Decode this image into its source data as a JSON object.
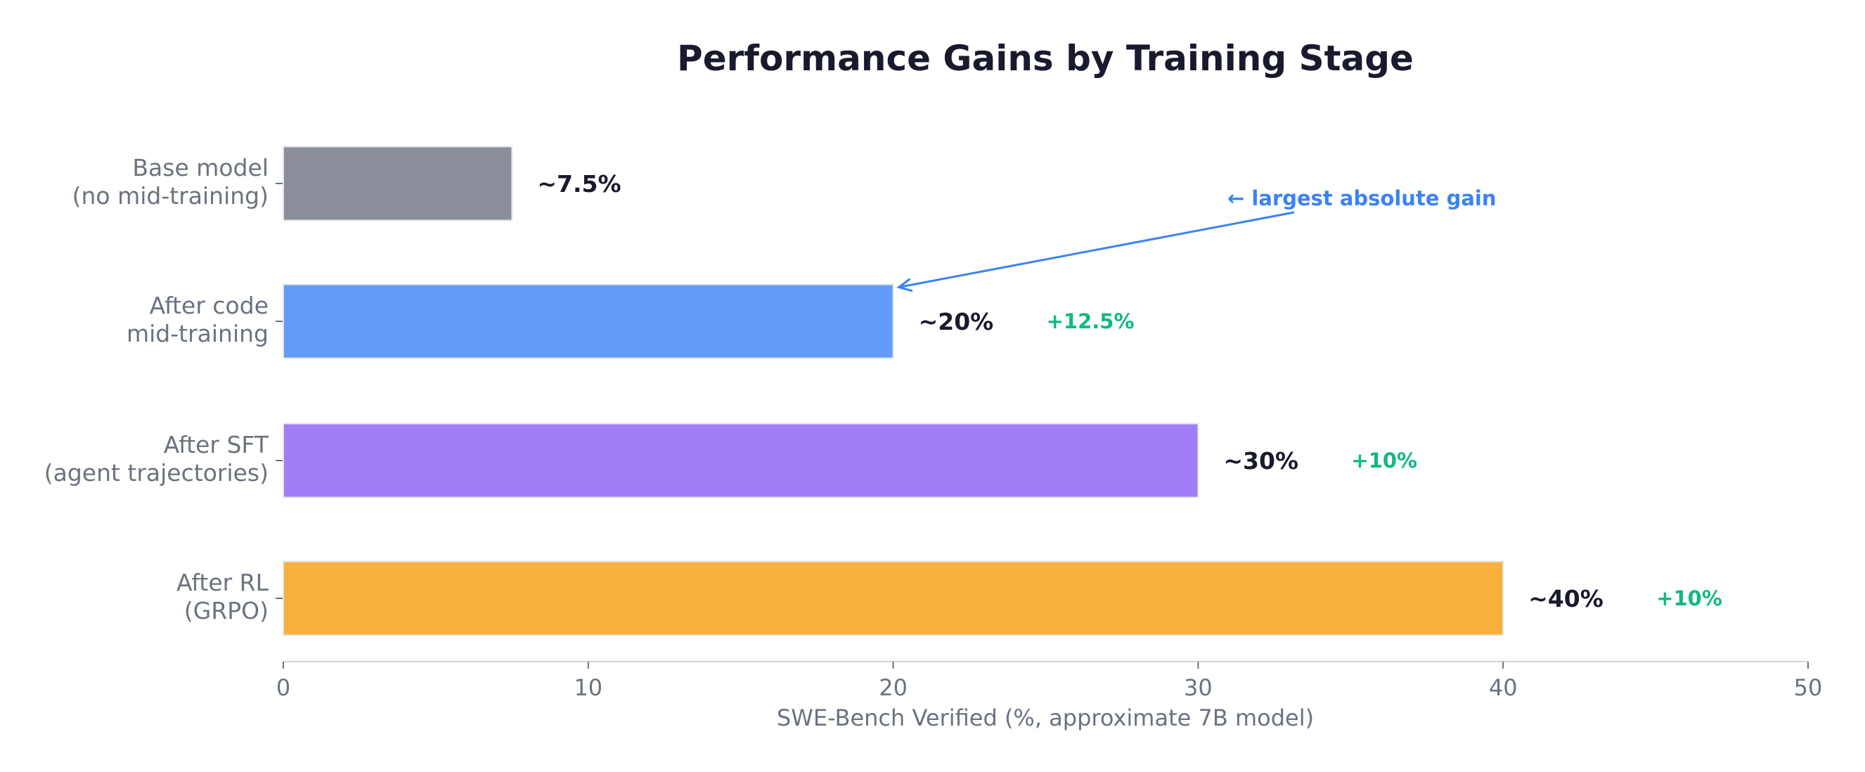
{
  "chart_data": {
    "type": "bar",
    "orientation": "horizontal",
    "title": "Performance Gains by Training Stage",
    "xlabel": "SWE-Bench Verified (%, approximate 7B model)",
    "ylabel": "",
    "xlim": [
      0,
      50
    ],
    "xticks": [
      0,
      10,
      20,
      30,
      40,
      50
    ],
    "xtick_labels": [
      "0",
      "10",
      "20",
      "30",
      "40",
      "50"
    ],
    "grid": false,
    "categories": [
      [
        "Base model",
        "(no mid-training)"
      ],
      [
        "After code",
        "mid-training"
      ],
      [
        "After SFT",
        "(agent trajectories)"
      ],
      [
        "After RL",
        "(GRPO)"
      ]
    ],
    "values": [
      7.5,
      20,
      30,
      40
    ],
    "value_labels": [
      "~7.5%",
      "~20%",
      "~30%",
      "~40%"
    ],
    "gain_labels": [
      "",
      "+12.5%",
      "+10%",
      "+10%"
    ],
    "colors": [
      "#8b8f99",
      "#639bfa",
      "#a07ef7",
      "#f8b13e"
    ],
    "annotation": {
      "text": "← largest absolute gain",
      "target_category_index": 1,
      "color": "#3b82f6"
    },
    "text_color": "#1a1a2e",
    "gain_color": "#10b981",
    "axis_label_color": "#6b7280"
  }
}
